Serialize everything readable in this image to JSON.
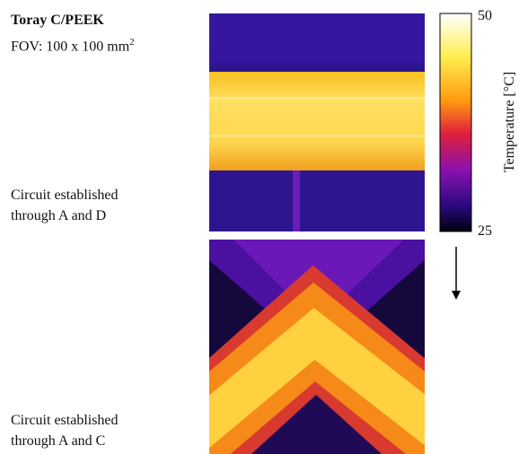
{
  "header": {
    "title": "Toray C/PEEK",
    "fov": "FOV: 100 x 100 mm",
    "fov_superscript": "2"
  },
  "panels": [
    {
      "caption": [
        "Circuit established",
        "through A and D"
      ]
    },
    {
      "caption": [
        "Circuit established",
        "through A and C"
      ]
    }
  ],
  "colorbar": {
    "max": "50",
    "min": "25",
    "label": "Temperature [°C]"
  }
}
